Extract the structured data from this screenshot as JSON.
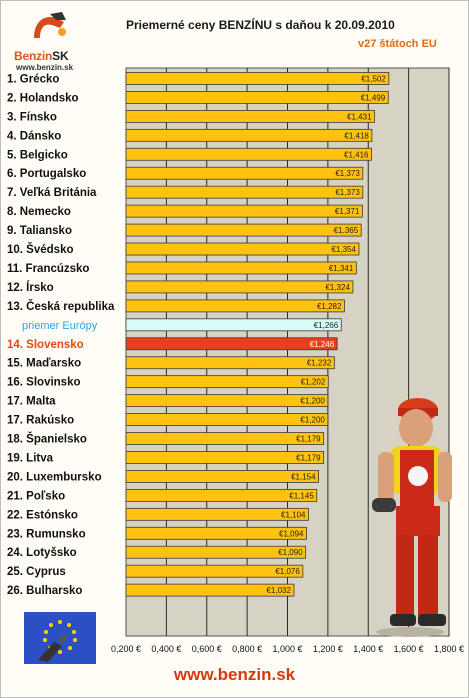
{
  "header": {
    "logo_text": "Benzin",
    "logo_text_suffix": "SK",
    "logo_url": "www.benzin.sk",
    "title": "Priemerné ceny BENZÍNU s daňou k 20.09.2010",
    "subtitle": "v27 štátoch EU"
  },
  "footer": {
    "url": "www.benzin.sk"
  },
  "colors": {
    "bar_default": "#ffc20e",
    "bar_highlight": "#e8401c",
    "bar_average": "#d8fbf6",
    "plot_bg": "#d6d2c4",
    "label_highlight": "#e24a14",
    "label_average": "#2aa6e0"
  },
  "chart_data": {
    "type": "bar",
    "orientation": "horizontal",
    "title": "Priemerné ceny BENZÍNU s daňou k 20.09.2010",
    "subtitle": "v27 štátoch EU",
    "xlim": [
      0.2,
      1.8
    ],
    "xticks": [
      0.2,
      0.4,
      0.6,
      0.8,
      1.0,
      1.2,
      1.4,
      1.6,
      1.8
    ],
    "xtick_labels": [
      "0,200 €",
      "0,400 €",
      "0,600 €",
      "0,800 €",
      "1,000 €",
      "1,200 €",
      "1,400 €",
      "1,600 €",
      "1,800 €"
    ],
    "grid": true,
    "categories": [
      "1. Grécko",
      "2. Holandsko",
      "3. Fínsko",
      "4. Dánsko",
      "5. Belgicko",
      "6. Portugalsko",
      "7. Veľká Británia",
      "8. Nemecko",
      "9. Taliansko",
      "10. Švédsko",
      "11. Francúzsko",
      "12. Írsko",
      "13. Česká republika",
      "priemer Európy",
      "14. Slovensko",
      "15. Maďarsko",
      "16. Slovinsko",
      "17. Malta",
      "17. Rakúsko",
      "18. Španielsko",
      "19. Litva",
      "20. Luxembursko",
      "21. Poľsko",
      "22. Estónsko",
      "23. Rumunsko",
      "24. Lotyšsko",
      "25. Cyprus",
      "26. Bulharsko"
    ],
    "values": [
      1.502,
      1.499,
      1.431,
      1.418,
      1.416,
      1.373,
      1.373,
      1.371,
      1.365,
      1.354,
      1.341,
      1.324,
      1.282,
      1.266,
      1.246,
      1.232,
      1.202,
      1.2,
      1.2,
      1.179,
      1.179,
      1.154,
      1.145,
      1.104,
      1.094,
      1.09,
      1.076,
      1.032
    ],
    "value_labels": [
      "€1,502",
      "€1,499",
      "€1,431",
      "€1,418",
      "€1,416",
      "€1,373",
      "€1,373",
      "€1,371",
      "€1,365",
      "€1,354",
      "€1,341",
      "€1,324",
      "€1,282",
      "€1,266",
      "€1,246",
      "€1,232",
      "€1,202",
      "€1,200",
      "€1,200",
      "€1,179",
      "€1,179",
      "€1,154",
      "€1,145",
      "€1,104",
      "€1,094",
      "€1,090",
      "€1,076",
      "€1,032"
    ],
    "highlight": "14. Slovensko",
    "average": "priemer Európy"
  }
}
